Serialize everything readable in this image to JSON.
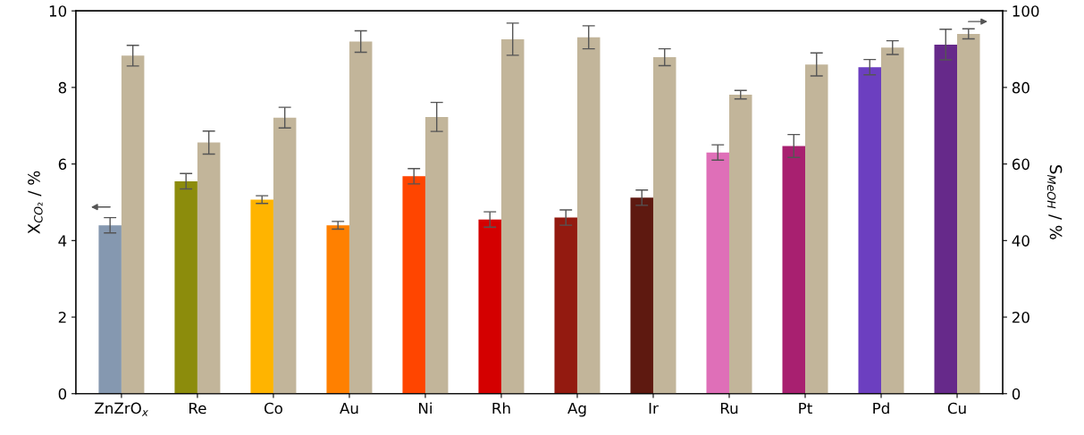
{
  "chart_data": {
    "type": "bar",
    "ylabel": "X$_{CO₂}$ / %",
    "y2label": "S$_{MeOH}$ / %",
    "categories": [
      "ZnZrO$_{x}$",
      "Re",
      "Co",
      "Au",
      "Ni",
      "Rh",
      "Ag",
      "Ir",
      "Ru",
      "Pt",
      "Pd",
      "Cu"
    ],
    "series": [
      {
        "colors": [
          "#8598b0",
          "#8c8c0c",
          "#ffb400",
          "#ff8000",
          "#ff4500",
          "#d40000",
          "#931a10",
          "#5e1910",
          "#df6fb8",
          "#a82070",
          "#6c3fc0",
          "#66298a"
        ],
        "values": [
          4.4,
          5.55,
          5.07,
          4.4,
          5.68,
          4.55,
          4.6,
          5.12,
          6.3,
          6.47,
          8.53,
          9.12
        ],
        "errors": [
          0.2,
          0.2,
          0.1,
          0.1,
          0.2,
          0.2,
          0.2,
          0.2,
          0.2,
          0.3,
          0.2,
          0.4
        ]
      },
      {
        "color": "#c2b59a",
        "axis": "y2",
        "values": [
          88.3,
          65.6,
          72.1,
          92,
          72.3,
          92.6,
          93.1,
          87.9,
          78.1,
          86,
          90.4,
          94
        ],
        "errors": [
          2.7,
          3,
          2.7,
          2.8,
          3.8,
          4.2,
          3,
          2.2,
          1.1,
          3,
          1.8,
          1.3
        ]
      }
    ],
    "ylim": [
      0,
      10
    ],
    "yticks": [
      0,
      2,
      4,
      6,
      8,
      10
    ],
    "y2lim": [
      0,
      100
    ],
    "y2ticks": [
      0,
      20,
      40,
      60,
      80,
      100
    ],
    "grid": false,
    "legend": false
  }
}
